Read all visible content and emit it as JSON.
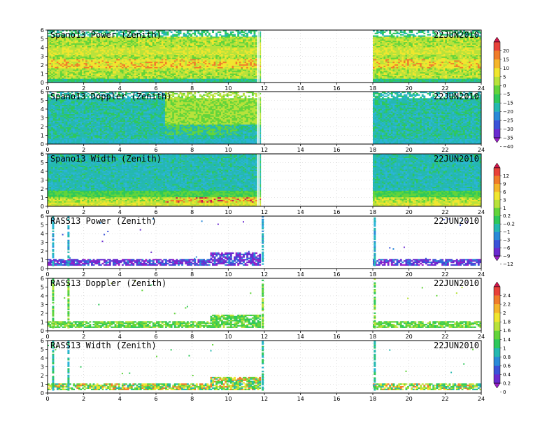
{
  "xaxis": {
    "ticks": [
      0,
      2,
      4,
      6,
      8,
      10,
      12,
      14,
      16,
      18,
      20,
      22,
      24
    ],
    "range": [
      0,
      24
    ]
  },
  "yaxis": {
    "ticks": [
      0,
      1,
      2,
      3,
      4,
      5,
      6
    ],
    "range": [
      0,
      6
    ]
  },
  "date_label": "22JUN2010",
  "chart_data": [
    {
      "type": "heatmap",
      "title": "Spano13 Power (Zenith)",
      "date": "22JUN2010",
      "variable": "power",
      "colorbar": 0,
      "gaps_hours": [
        [
          11.8,
          18.0
        ]
      ],
      "xlim": [
        0,
        24
      ],
      "ylim": [
        0,
        6
      ]
    },
    {
      "type": "heatmap",
      "title": "Spano13 Doppler (Zenith)",
      "date": "22JUN2010",
      "variable": "doppler",
      "colorbar": 0,
      "gaps_hours": [
        [
          11.8,
          18.0
        ]
      ],
      "xlim": [
        0,
        24
      ],
      "ylim": [
        0,
        6
      ]
    },
    {
      "type": "heatmap",
      "title": "Spano13 Width (Zenith)",
      "date": "22JUN2010",
      "variable": "width",
      "colorbar": 1,
      "gaps_hours": [
        [
          11.8,
          18.0
        ]
      ],
      "xlim": [
        0,
        24
      ],
      "ylim": [
        0,
        6
      ]
    },
    {
      "type": "heatmap",
      "title": "RASS13 Power (Zenith)",
      "date": "22JUN2010",
      "variable": "rass_power",
      "colorbar": 1,
      "gaps_hours": [
        [
          11.8,
          18.0
        ]
      ],
      "xlim": [
        0,
        24
      ],
      "ylim": [
        0,
        6
      ]
    },
    {
      "type": "heatmap",
      "title": "RASS13 Doppler (Zenith)",
      "date": "22JUN2010",
      "variable": "rass_doppler",
      "colorbar": 2,
      "gaps_hours": [
        [
          11.8,
          18.0
        ]
      ],
      "xlim": [
        0,
        24
      ],
      "ylim": [
        0,
        6
      ]
    },
    {
      "type": "heatmap",
      "title": "RASS13 Width (Zenith)",
      "date": "22JUN2010",
      "variable": "rass_width",
      "colorbar": 2,
      "gaps_hours": [
        [
          11.8,
          18.0
        ]
      ],
      "xlim": [
        0,
        24
      ],
      "ylim": [
        0,
        6
      ]
    }
  ],
  "colorbars": [
    {
      "labels": [
        "20",
        "15",
        "10",
        "5",
        "0",
        "−5",
        "−15",
        "−20",
        "−25",
        "−30",
        "−35",
        "−40"
      ],
      "colors": [
        "#d0154a",
        "#e8413a",
        "#f07c2a",
        "#f5b52a",
        "#f0e62e",
        "#b8e23a",
        "#62d43a",
        "#2ec85a",
        "#24b8b0",
        "#2a8ad8",
        "#3a52d8",
        "#6a2ad0",
        "#9a1ec8"
      ]
    },
    {
      "labels": [
        "12",
        "9",
        "6",
        "3",
        "1",
        "0.2",
        "−0.2",
        "−1",
        "−3",
        "−6",
        "−9",
        "−12"
      ],
      "colors": [
        "#d0154a",
        "#e8413a",
        "#f07c2a",
        "#f5b52a",
        "#f0e62e",
        "#b8e23a",
        "#62d43a",
        "#2ec85a",
        "#24b8b0",
        "#2a8ad8",
        "#3a52d8",
        "#6a2ad0",
        "#9a1ec8"
      ]
    },
    {
      "labels": [
        "2.4",
        "2.2",
        "2",
        "1.8",
        "1.6",
        "1.4",
        "1",
        "0.8",
        "0.6",
        "0.4",
        "0.2",
        "0"
      ],
      "colors": [
        "#d0154a",
        "#e8413a",
        "#f07c2a",
        "#f5b52a",
        "#f0e62e",
        "#b8e23a",
        "#62d43a",
        "#2ec85a",
        "#24b8b0",
        "#2a8ad8",
        "#3a52d8",
        "#6a2ad0",
        "#9a1ec8"
      ]
    }
  ]
}
